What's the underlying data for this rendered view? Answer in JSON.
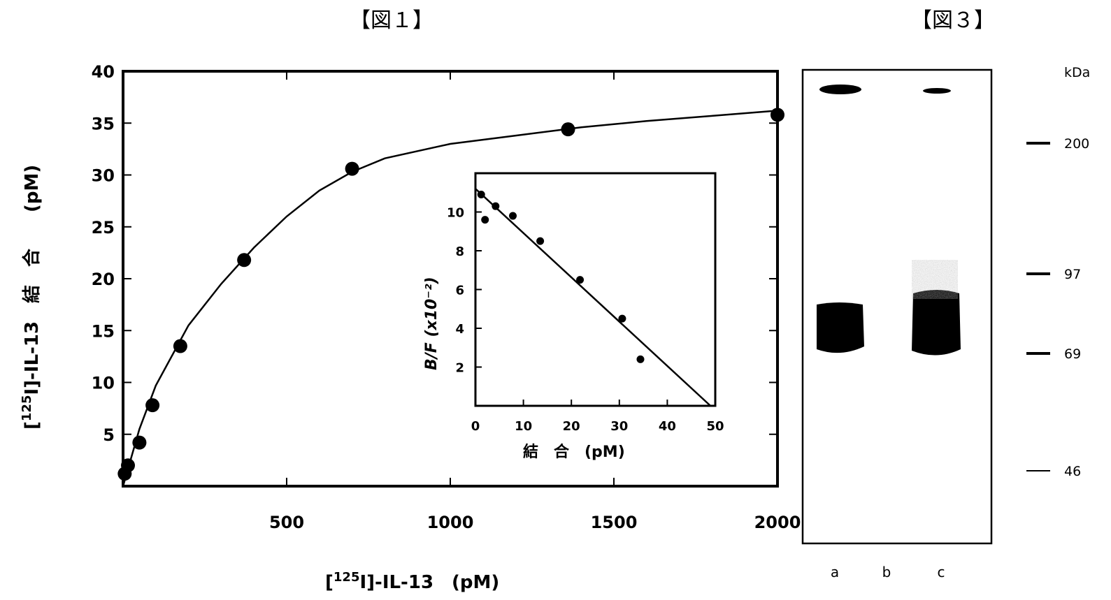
{
  "figure1": {
    "title": "【図１】",
    "chart_data": {
      "type": "scatter",
      "xlabel_prefix": "[",
      "xlabel_sup": "125",
      "xlabel_rest": "I]-IL-13　(pM)",
      "ylabel_prefix": "[",
      "ylabel_sup": "125",
      "ylabel_rest": "I]-IL-13　結　合　　(pM)",
      "xlim": [
        0,
        2000
      ],
      "ylim": [
        0,
        40
      ],
      "x_ticks": [
        500,
        1000,
        1500,
        2000
      ],
      "y_ticks": [
        5,
        10,
        15,
        20,
        25,
        30,
        35,
        40
      ],
      "series": [
        {
          "points": [
            {
              "x": 5,
              "y": 1.2
            },
            {
              "x": 15,
              "y": 2.0
            },
            {
              "x": 50,
              "y": 4.2
            },
            {
              "x": 90,
              "y": 7.8
            },
            {
              "x": 175,
              "y": 13.5
            },
            {
              "x": 370,
              "y": 21.8
            },
            {
              "x": 700,
              "y": 30.6
            },
            {
              "x": 1360,
              "y": 34.4
            },
            {
              "x": 2000,
              "y": 35.8
            }
          ],
          "fit": [
            [
              0,
              0
            ],
            [
              50,
              5.5
            ],
            [
              100,
              9.7
            ],
            [
              200,
              15.5
            ],
            [
              300,
              19.5
            ],
            [
              400,
              23.0
            ],
            [
              500,
              26.0
            ],
            [
              600,
              28.5
            ],
            [
              700,
              30.3
            ],
            [
              800,
              31.6
            ],
            [
              1000,
              33.0
            ],
            [
              1200,
              33.8
            ],
            [
              1400,
              34.6
            ],
            [
              1600,
              35.2
            ],
            [
              1800,
              35.7
            ],
            [
              2000,
              36.2
            ]
          ]
        }
      ]
    },
    "inset": {
      "chart_data": {
        "type": "scatter",
        "xlabel": "結　合　(pM)",
        "ylabel": "B/F (x10⁻²)",
        "xlim": [
          0,
          50
        ],
        "ylim": [
          0,
          12
        ],
        "x_ticks": [
          0,
          10,
          20,
          30,
          40,
          50
        ],
        "y_ticks": [
          2,
          4,
          6,
          8,
          10
        ],
        "points": [
          {
            "x": 1.2,
            "y": 10.9
          },
          {
            "x": 2.0,
            "y": 9.6
          },
          {
            "x": 4.2,
            "y": 10.3
          },
          {
            "x": 7.8,
            "y": 9.8
          },
          {
            "x": 13.5,
            "y": 8.5
          },
          {
            "x": 21.8,
            "y": 6.5
          },
          {
            "x": 30.6,
            "y": 4.5
          },
          {
            "x": 34.4,
            "y": 2.4
          }
        ],
        "fit": [
          [
            0,
            11.2
          ],
          [
            49,
            0
          ]
        ]
      }
    }
  },
  "figure3": {
    "title": "【図３】",
    "unit": "kDa",
    "markers": [
      "200",
      "97",
      "69",
      "46"
    ],
    "lanes": [
      "a",
      "b",
      "c"
    ]
  }
}
